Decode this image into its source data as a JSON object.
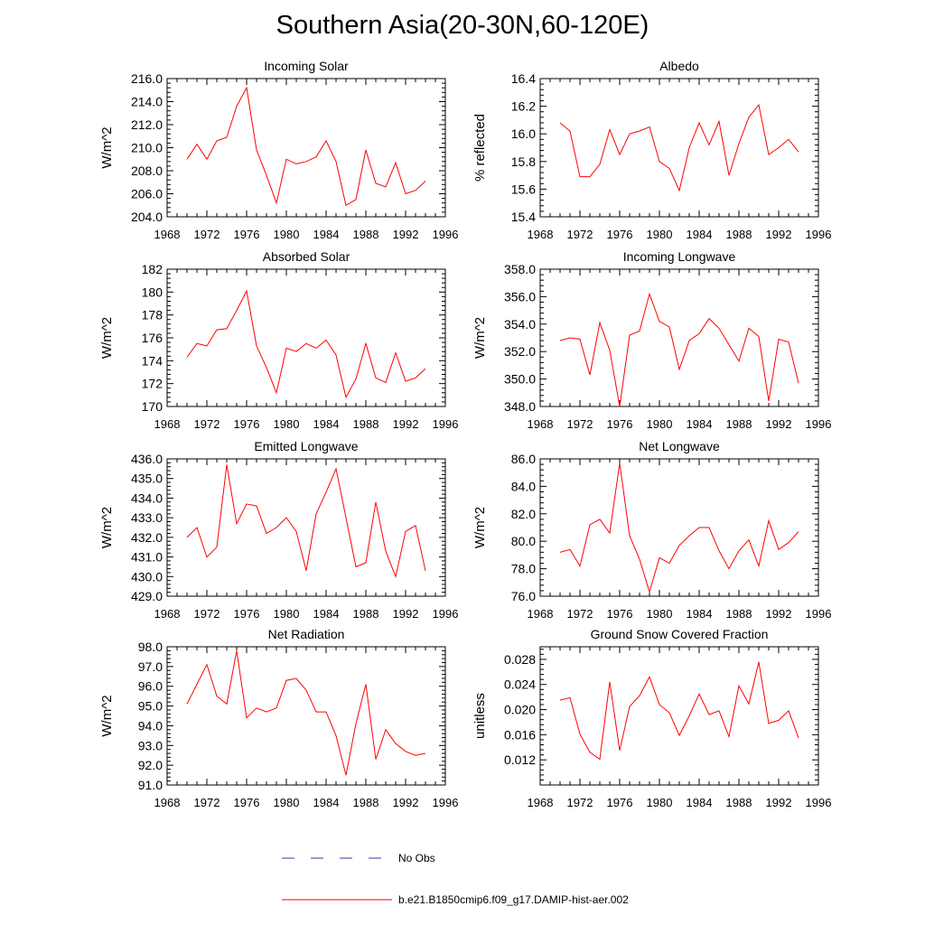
{
  "figure": {
    "title": "Southern Asia(20-30N,60-120E)"
  },
  "legend": {
    "items": [
      {
        "label": "No Obs",
        "color": "#3a3aa8",
        "dash": true
      },
      {
        "label": "b.e21.B1850cmip6.f09_g17.DAMIP-hist-aer.002",
        "color": "#ff0000",
        "dash": false
      }
    ]
  },
  "colors": {
    "series": "#ff0000",
    "axis": "#000000"
  },
  "chart_data": [
    {
      "type": "line",
      "title": "Incoming Solar",
      "ylabel": "W/m^2",
      "xlim": [
        1968,
        1996
      ],
      "xticks": [
        1968,
        1972,
        1976,
        1980,
        1984,
        1988,
        1992,
        1996
      ],
      "ylim": [
        204,
        216
      ],
      "yticks": [
        "204.0",
        "206.0",
        "208.0",
        "210.0",
        "212.0",
        "214.0",
        "216.0"
      ],
      "x": [
        1970,
        1971,
        1972,
        1973,
        1974,
        1975,
        1976,
        1977,
        1978,
        1979,
        1980,
        1981,
        1982,
        1983,
        1984,
        1985,
        1986,
        1987,
        1988,
        1989,
        1990,
        1991,
        1992,
        1993,
        1994
      ],
      "values": [
        209.0,
        210.3,
        209.0,
        210.6,
        210.9,
        213.6,
        215.2,
        209.8,
        207.6,
        205.2,
        209.0,
        208.6,
        208.8,
        209.2,
        210.6,
        208.8,
        205.0,
        205.5,
        209.8,
        206.9,
        206.6,
        208.7,
        206.0,
        206.3,
        207.1
      ]
    },
    {
      "type": "line",
      "title": "Albedo",
      "ylabel": "% reflected",
      "xlim": [
        1968,
        1996
      ],
      "xticks": [
        1968,
        1972,
        1976,
        1980,
        1984,
        1988,
        1992,
        1996
      ],
      "ylim": [
        15.4,
        16.4
      ],
      "yticks": [
        "15.4",
        "15.6",
        "15.8",
        "16.0",
        "16.2",
        "16.4"
      ],
      "x": [
        1970,
        1971,
        1972,
        1973,
        1974,
        1975,
        1976,
        1977,
        1978,
        1979,
        1980,
        1981,
        1982,
        1983,
        1984,
        1985,
        1986,
        1987,
        1988,
        1989,
        1990,
        1991,
        1992,
        1993,
        1994
      ],
      "values": [
        16.08,
        16.02,
        15.69,
        15.69,
        15.78,
        16.03,
        15.85,
        16.0,
        16.02,
        16.05,
        15.8,
        15.75,
        15.59,
        15.9,
        16.08,
        15.92,
        16.09,
        15.7,
        15.93,
        16.12,
        16.21,
        15.85,
        15.9,
        15.96,
        15.87
      ]
    },
    {
      "type": "line",
      "title": "Absorbed Solar",
      "ylabel": "W/m^2",
      "xlim": [
        1968,
        1996
      ],
      "xticks": [
        1968,
        1972,
        1976,
        1980,
        1984,
        1988,
        1992,
        1996
      ],
      "ylim": [
        170,
        182
      ],
      "yticks": [
        "170",
        "172",
        "174",
        "176",
        "178",
        "180",
        "182"
      ],
      "x": [
        1970,
        1971,
        1972,
        1973,
        1974,
        1975,
        1976,
        1977,
        1978,
        1979,
        1980,
        1981,
        1982,
        1983,
        1984,
        1985,
        1986,
        1987,
        1988,
        1989,
        1990,
        1991,
        1992,
        1993,
        1994
      ],
      "values": [
        174.3,
        175.5,
        175.3,
        176.7,
        176.8,
        178.4,
        180.1,
        175.3,
        173.4,
        171.2,
        175.1,
        174.8,
        175.5,
        175.1,
        175.8,
        174.5,
        170.8,
        172.4,
        175.5,
        172.5,
        172.1,
        174.7,
        172.2,
        172.5,
        173.3
      ]
    },
    {
      "type": "line",
      "title": "Incoming Longwave",
      "ylabel": "W/m^2",
      "xlim": [
        1968,
        1996
      ],
      "xticks": [
        1968,
        1972,
        1976,
        1980,
        1984,
        1988,
        1992,
        1996
      ],
      "ylim": [
        348,
        358
      ],
      "yticks": [
        "348.0",
        "350.0",
        "352.0",
        "354.0",
        "356.0",
        "358.0"
      ],
      "x": [
        1970,
        1971,
        1972,
        1973,
        1974,
        1975,
        1976,
        1977,
        1978,
        1979,
        1980,
        1981,
        1982,
        1983,
        1984,
        1985,
        1986,
        1987,
        1988,
        1989,
        1990,
        1991,
        1992,
        1993,
        1994
      ],
      "values": [
        352.8,
        353.0,
        352.9,
        350.3,
        354.1,
        352.1,
        348.0,
        353.2,
        353.5,
        356.2,
        354.2,
        353.8,
        350.7,
        352.8,
        353.3,
        354.4,
        353.7,
        352.5,
        351.3,
        353.7,
        353.1,
        348.4,
        352.9,
        352.7,
        349.7
      ]
    },
    {
      "type": "line",
      "title": "Emitted Longwave",
      "ylabel": "W/m^2",
      "xlim": [
        1968,
        1996
      ],
      "xticks": [
        1968,
        1972,
        1976,
        1980,
        1984,
        1988,
        1992,
        1996
      ],
      "ylim": [
        429,
        436
      ],
      "yticks": [
        "429.0",
        "430.0",
        "431.0",
        "432.0",
        "433.0",
        "434.0",
        "435.0",
        "436.0"
      ],
      "x": [
        1970,
        1971,
        1972,
        1973,
        1974,
        1975,
        1976,
        1977,
        1978,
        1979,
        1980,
        1981,
        1982,
        1983,
        1984,
        1985,
        1986,
        1987,
        1988,
        1989,
        1990,
        1991,
        1992,
        1993,
        1994
      ],
      "values": [
        432.0,
        432.5,
        431.0,
        431.5,
        435.7,
        432.7,
        433.7,
        433.6,
        432.2,
        432.5,
        433.0,
        432.3,
        430.3,
        433.2,
        434.3,
        435.5,
        433.0,
        430.5,
        430.7,
        433.8,
        431.3,
        430.0,
        432.3,
        432.6,
        430.3
      ]
    },
    {
      "type": "line",
      "title": "Net Longwave",
      "ylabel": "W/m^2",
      "xlim": [
        1968,
        1996
      ],
      "xticks": [
        1968,
        1972,
        1976,
        1980,
        1984,
        1988,
        1992,
        1996
      ],
      "ylim": [
        76,
        86
      ],
      "yticks": [
        "76.0",
        "78.0",
        "80.0",
        "82.0",
        "84.0",
        "86.0"
      ],
      "x": [
        1970,
        1971,
        1972,
        1973,
        1974,
        1975,
        1976,
        1977,
        1978,
        1979,
        1980,
        1981,
        1982,
        1983,
        1984,
        1985,
        1986,
        1987,
        1988,
        1989,
        1990,
        1991,
        1992,
        1993,
        1994
      ],
      "values": [
        79.2,
        79.4,
        78.2,
        81.2,
        81.6,
        80.6,
        85.7,
        80.4,
        78.7,
        76.3,
        78.8,
        78.4,
        79.7,
        80.4,
        81.0,
        81.0,
        79.3,
        78.0,
        79.3,
        80.1,
        78.2,
        81.5,
        79.4,
        79.9,
        80.7
      ]
    },
    {
      "type": "line",
      "title": "Net Radiation",
      "ylabel": "W/m^2",
      "xlim": [
        1968,
        1996
      ],
      "xticks": [
        1968,
        1972,
        1976,
        1980,
        1984,
        1988,
        1992,
        1996
      ],
      "ylim": [
        91,
        98
      ],
      "yticks": [
        "91.0",
        "92.0",
        "93.0",
        "94.0",
        "95.0",
        "96.0",
        "97.0",
        "98.0"
      ],
      "x": [
        1970,
        1971,
        1972,
        1973,
        1974,
        1975,
        1976,
        1977,
        1978,
        1979,
        1980,
        1981,
        1982,
        1983,
        1984,
        1985,
        1986,
        1987,
        1988,
        1989,
        1990,
        1991,
        1992,
        1993,
        1994
      ],
      "values": [
        95.1,
        96.1,
        97.1,
        95.5,
        95.1,
        97.8,
        94.4,
        94.9,
        94.7,
        94.9,
        96.3,
        96.4,
        95.8,
        94.7,
        94.7,
        93.5,
        91.5,
        94.1,
        96.1,
        92.3,
        93.8,
        93.1,
        92.7,
        92.5,
        92.6
      ]
    },
    {
      "type": "line",
      "title": "Ground Snow Covered Fraction",
      "ylabel": "unitless",
      "xlim": [
        1968,
        1996
      ],
      "xticks": [
        1968,
        1972,
        1976,
        1980,
        1984,
        1988,
        1992,
        1996
      ],
      "ylim": [
        0.008,
        0.03
      ],
      "yticks": [
        "0.012",
        "0.016",
        "0.020",
        "0.024",
        "0.028"
      ],
      "x": [
        1970,
        1971,
        1972,
        1973,
        1974,
        1975,
        1976,
        1977,
        1978,
        1979,
        1980,
        1981,
        1982,
        1983,
        1984,
        1985,
        1986,
        1987,
        1988,
        1989,
        1990,
        1991,
        1992,
        1993,
        1994
      ],
      "values": [
        0.0215,
        0.0219,
        0.0161,
        0.0132,
        0.0121,
        0.0244,
        0.0135,
        0.0205,
        0.0222,
        0.0252,
        0.0208,
        0.0195,
        0.0159,
        0.019,
        0.0225,
        0.0192,
        0.0198,
        0.0157,
        0.0238,
        0.0209,
        0.0276,
        0.0178,
        0.0183,
        0.0198,
        0.0155
      ]
    }
  ]
}
